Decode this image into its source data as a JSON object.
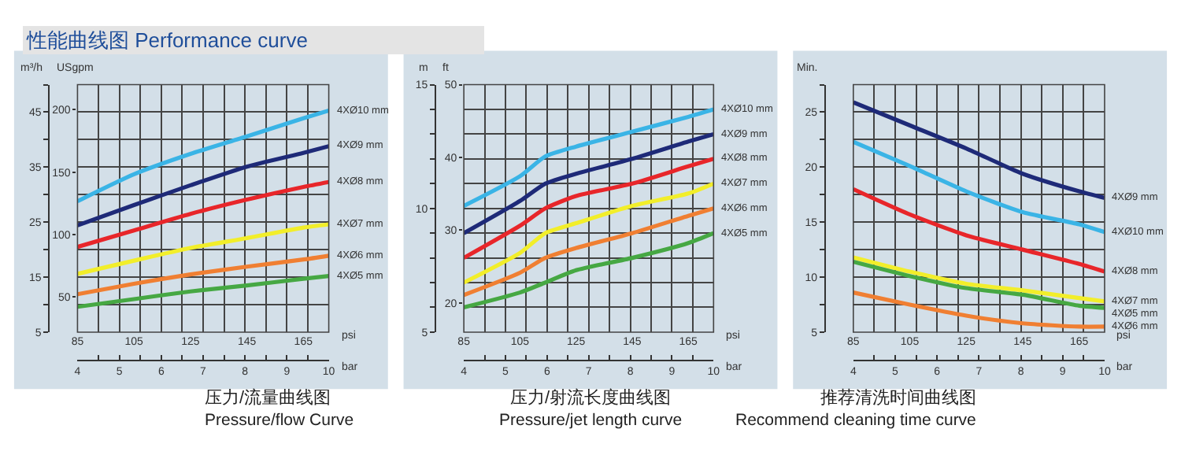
{
  "chart_data": [
    {
      "type": "line",
      "title": "压力/流量曲线图",
      "subtitle": "Pressure/flow Curve",
      "annotations": [
        "性能曲线图 Performance curve"
      ],
      "xlabel": "psi",
      "x2label": "bar",
      "ylabel": "m³/h",
      "y2label": "USgpm",
      "x": [
        85,
        105,
        125,
        145,
        165,
        174
      ],
      "xlim": [
        85,
        174
      ],
      "xticks": [
        85,
        105,
        125,
        145,
        165
      ],
      "x2lim": [
        4,
        10
      ],
      "x2ticks": [
        4,
        {
          "value": 4.5,
          "label": null
        },
        5,
        {
          "value": 5.5,
          "label": null
        },
        6,
        {
          "value": 6.5,
          "label": null
        },
        7,
        {
          "value": 7.5,
          "label": null
        },
        8,
        {
          "value": 8.5,
          "label": null
        },
        9,
        {
          "value": 9.5,
          "label": null
        },
        10
      ],
      "ylim": [
        5,
        50
      ],
      "yticks": [
        5,
        {
          "value": 10,
          "label": null
        },
        15,
        {
          "value": 20,
          "label": null
        },
        25,
        {
          "value": 30,
          "label": null
        },
        35,
        {
          "value": 40,
          "label": null
        },
        45,
        {
          "value": 50,
          "label": null
        }
      ],
      "y2lim": [
        22,
        220
      ],
      "y2ticks": [
        50,
        100,
        150,
        200
      ],
      "grid": true,
      "line_style": "solid",
      "marker": "none",
      "series": [
        {
          "name": "4XØ10 mm",
          "color": "#3ab4e6",
          "values": [
            28.8,
            33.7,
            37.4,
            40.6,
            43.9,
            45.3
          ]
        },
        {
          "name": "4XØ9 mm",
          "color": "#1e2a78",
          "values": [
            24.4,
            28.1,
            31.7,
            35.1,
            37.6,
            38.8
          ]
        },
        {
          "name": "4XØ8 mm",
          "color": "#e8262a",
          "values": [
            20.5,
            23.5,
            26.5,
            29.1,
            31.4,
            32.3
          ]
        },
        {
          "name": "4XØ7 mm",
          "color": "#f2ee2a",
          "values": [
            15.6,
            18.0,
            20.3,
            22.1,
            24.0,
            24.6
          ]
        },
        {
          "name": "4XØ6 mm",
          "color": "#f07f32",
          "values": [
            11.9,
            13.8,
            15.5,
            16.9,
            18.2,
            18.9
          ]
        },
        {
          "name": "4XØ5 mm",
          "color": "#46a843",
          "values": [
            9.6,
            11.0,
            12.4,
            13.5,
            14.7,
            15.2
          ]
        }
      ]
    },
    {
      "type": "line",
      "title": "压力/射流长度曲线图",
      "subtitle": "Pressure/jet length curve",
      "xlabel": "psi",
      "x2label": "bar",
      "ylabel": "m",
      "y2label": "ft",
      "x": [
        85,
        105,
        114,
        125,
        145,
        165,
        174
      ],
      "xlim": [
        85,
        174
      ],
      "xticks": [
        85,
        105,
        125,
        145,
        165
      ],
      "x2lim": [
        4,
        10
      ],
      "x2ticks": [
        4,
        {
          "value": 4.5,
          "label": null
        },
        5,
        {
          "value": 5.5,
          "label": null
        },
        6,
        {
          "value": 6.5,
          "label": null
        },
        7,
        {
          "value": 7.5,
          "label": null
        },
        8,
        {
          "value": 8.5,
          "label": null
        },
        9,
        {
          "value": 9.5,
          "label": null
        },
        10
      ],
      "ylim": [
        5,
        15
      ],
      "yticks": [
        5,
        {
          "value": 6,
          "label": null
        },
        {
          "value": 7,
          "label": null
        },
        {
          "value": 8,
          "label": null
        },
        {
          "value": 9,
          "label": null
        },
        10,
        {
          "value": 11,
          "label": null
        },
        {
          "value": 12,
          "label": null
        },
        {
          "value": 13,
          "label": null
        },
        {
          "value": 14,
          "label": null
        },
        15
      ],
      "y2lim": [
        16,
        50
      ],
      "y2ticks": [
        20,
        30,
        40,
        50
      ],
      "grid": true,
      "line_style": "solid",
      "marker": "none",
      "series": [
        {
          "name": "4XØ10 mm",
          "color": "#3ab4e6",
          "values": [
            10.1,
            11.3,
            12.1,
            12.5,
            13.1,
            13.7,
            14.0
          ]
        },
        {
          "name": "4XØ9 mm",
          "color": "#1e2a78",
          "values": [
            9.0,
            10.3,
            11.0,
            11.4,
            12.0,
            12.7,
            13.0
          ]
        },
        {
          "name": "4XØ8 mm",
          "color": "#e8262a",
          "values": [
            8.0,
            9.3,
            10.0,
            10.5,
            11.0,
            11.7,
            12.0
          ]
        },
        {
          "name": "4XØ7 mm",
          "color": "#f2ee2a",
          "values": [
            7.0,
            8.2,
            9.0,
            9.4,
            10.1,
            10.6,
            11.0
          ]
        },
        {
          "name": "4XØ6 mm",
          "color": "#f07f32",
          "values": [
            6.5,
            7.4,
            8.0,
            8.4,
            9.0,
            9.7,
            10.0
          ]
        },
        {
          "name": "4XØ5 mm",
          "color": "#46a843",
          "values": [
            6.0,
            6.6,
            7.0,
            7.5,
            8.0,
            8.6,
            9.0
          ]
        }
      ]
    },
    {
      "type": "line",
      "title": "推荐清洗时间曲线图",
      "subtitle": "Recommend cleaning time curve",
      "xlabel": "psi",
      "x2label": "bar",
      "ylabel": "Min.",
      "x": [
        85,
        105,
        125,
        145,
        165,
        174
      ],
      "xlim": [
        85,
        174
      ],
      "xticks": [
        85,
        105,
        125,
        145,
        165
      ],
      "x2lim": [
        4,
        10
      ],
      "x2ticks": [
        4,
        {
          "value": 4.5,
          "label": null
        },
        5,
        {
          "value": 5.5,
          "label": null
        },
        6,
        {
          "value": 6.5,
          "label": null
        },
        7,
        {
          "value": 7.5,
          "label": null
        },
        8,
        {
          "value": 8.5,
          "label": null
        },
        9,
        {
          "value": 9.5,
          "label": null
        },
        10
      ],
      "ylim": [
        5,
        27.5
      ],
      "yticks": [
        5,
        {
          "value": 7.5,
          "label": null
        },
        10,
        {
          "value": 12.5,
          "label": null
        },
        15,
        {
          "value": 17.5,
          "label": null
        },
        20,
        {
          "value": 22.5,
          "label": null
        },
        25,
        {
          "value": 27.5,
          "label": null
        }
      ],
      "grid": true,
      "line_style": "solid",
      "marker": "none",
      "series": [
        {
          "name": "4XØ9 mm",
          "color": "#1e2a78",
          "values": [
            25.9,
            23.8,
            21.7,
            19.4,
            17.8,
            17.2
          ]
        },
        {
          "name": "4XØ10 mm",
          "color": "#3ab4e6",
          "values": [
            22.3,
            20.1,
            17.8,
            15.9,
            14.8,
            14.1
          ]
        },
        {
          "name": "4XØ8 mm",
          "color": "#e8262a",
          "values": [
            18.0,
            15.7,
            13.8,
            12.5,
            11.2,
            10.5
          ]
        },
        {
          "name": "4XØ7 mm",
          "color": "#f2ee2a",
          "values": [
            11.8,
            10.5,
            9.4,
            8.8,
            8.1,
            7.8
          ]
        },
        {
          "name": "4XØ5 mm",
          "color": "#46a843",
          "values": [
            11.4,
            10.1,
            9.0,
            8.4,
            7.4,
            7.2
          ]
        },
        {
          "name": "4XØ6 mm",
          "color": "#f07f32",
          "values": [
            8.6,
            7.5,
            6.5,
            5.8,
            5.5,
            5.5
          ]
        }
      ]
    }
  ]
}
